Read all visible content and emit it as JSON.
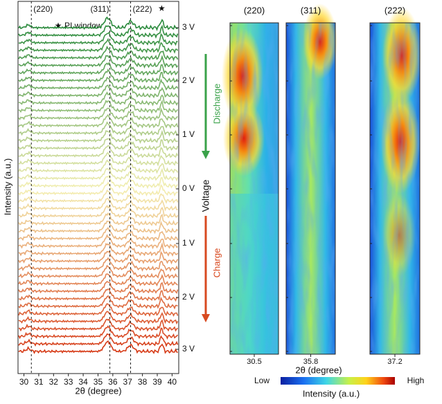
{
  "left": {
    "x_label": "2θ (degree)",
    "y_label": "Intensity (a.u.)",
    "xlim": [
      29.6,
      40.45
    ],
    "xticks": [
      30,
      31,
      32,
      33,
      34,
      35,
      36,
      37,
      38,
      39,
      40
    ],
    "reflections": [
      {
        "label": "(220)",
        "position": 30.5
      },
      {
        "label": "(311)",
        "position": 35.8
      },
      {
        "label": "(222)",
        "position": 37.2
      }
    ],
    "star": "★",
    "star_position": 39.3,
    "pi_window": "PI window",
    "curve_colors": [
      "#2a8a3c",
      "#f4efb2",
      "#d63a16"
    ],
    "voltage_labels": [
      "3 V",
      "2 V",
      "1 V",
      "0 V",
      "1 V",
      "2 V",
      "3 V"
    ]
  },
  "middle": {
    "label": "Voltage",
    "discharge": "Discharge",
    "charge": "Charge"
  },
  "right": {
    "panels": [
      {
        "title": "(220)",
        "tick": "30.5"
      },
      {
        "title": "(311)",
        "tick": "35.8"
      },
      {
        "title": "(222)",
        "tick": "37.2"
      }
    ],
    "x_label": "2θ (degree)",
    "colorbar": {
      "low": "Low",
      "high": "High",
      "label": "Intensity (a.u.)"
    }
  }
}
